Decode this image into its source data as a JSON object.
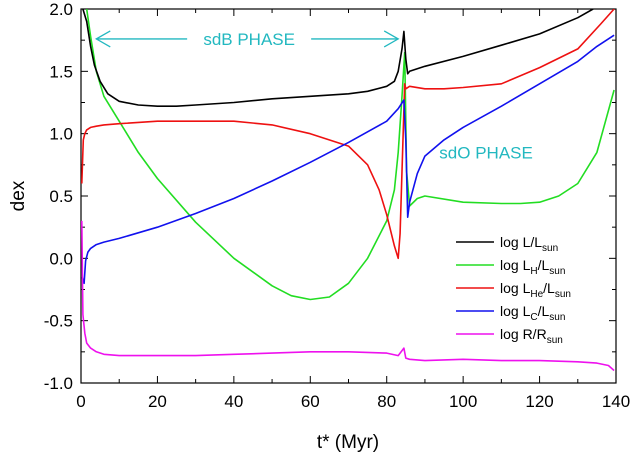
{
  "chart_data": {
    "type": "line",
    "xlabel": "t* (Myr)",
    "ylabel": "dex",
    "xlim": [
      0,
      140
    ],
    "ylim": [
      -1.0,
      2.0
    ],
    "xticks": [
      0,
      20,
      40,
      60,
      80,
      100,
      120,
      140
    ],
    "yticks": [
      -1.0,
      -0.5,
      0.0,
      0.5,
      1.0,
      1.5,
      2.0
    ],
    "xtick_labels": [
      "0",
      "20",
      "40",
      "60",
      "80",
      "100",
      "120",
      "140"
    ],
    "ytick_labels": [
      "-1.0",
      "-0.5",
      "0.0",
      "0.5",
      "1.0",
      "1.5",
      "2.0"
    ],
    "grid": false,
    "legend_position": "lower-right",
    "annotations": [
      {
        "text": "sdB PHASE",
        "x": 44,
        "y": 1.76,
        "arrow_from": 4,
        "arrow_to": 83
      },
      {
        "text": "sdO PHASE",
        "x": 106,
        "y": 0.85
      }
    ],
    "series": [
      {
        "name": "log L/L",
        "name_sub": "sun",
        "color": "#000000",
        "x": [
          0.5,
          1.5,
          2.5,
          3.5,
          5,
          7,
          10,
          15,
          20,
          25,
          30,
          40,
          50,
          60,
          70,
          75,
          80,
          82,
          83,
          84,
          84.5,
          85,
          85.5,
          86,
          90,
          100,
          110,
          120,
          130,
          134
        ],
        "y": [
          2.0,
          1.9,
          1.7,
          1.55,
          1.42,
          1.32,
          1.26,
          1.23,
          1.22,
          1.22,
          1.23,
          1.25,
          1.28,
          1.3,
          1.32,
          1.34,
          1.38,
          1.42,
          1.5,
          1.68,
          1.82,
          1.6,
          1.48,
          1.5,
          1.54,
          1.62,
          1.71,
          1.8,
          1.93,
          2.0
        ]
      },
      {
        "name": "log L",
        "name_sub": "H",
        "name_rest": "/L",
        "name_rest_sub": "sun",
        "color": "#22dd22",
        "x": [
          1.5,
          2.5,
          4,
          6,
          10,
          15,
          20,
          30,
          40,
          50,
          55,
          60,
          65,
          70,
          75,
          80,
          82,
          83,
          84,
          84.7,
          85.2,
          86,
          88,
          90,
          100,
          110,
          115,
          120,
          125,
          130,
          135,
          139.5
        ],
        "y": [
          2.0,
          1.78,
          1.5,
          1.3,
          1.1,
          0.85,
          0.64,
          0.29,
          0.0,
          -0.22,
          -0.3,
          -0.33,
          -0.31,
          -0.2,
          0.0,
          0.3,
          0.55,
          0.85,
          1.3,
          1.65,
          0.7,
          0.42,
          0.48,
          0.5,
          0.45,
          0.44,
          0.44,
          0.45,
          0.5,
          0.6,
          0.85,
          1.35
        ]
      },
      {
        "name": "log L",
        "name_sub": "He",
        "name_rest": "/L",
        "name_rest_sub": "sun",
        "color": "#ee1111",
        "x": [
          0.2,
          0.6,
          1.0,
          1.5,
          2.5,
          4,
          6,
          10,
          20,
          30,
          40,
          50,
          60,
          70,
          75,
          78,
          80,
          82,
          83,
          83.5,
          84,
          84.7,
          85,
          86,
          90,
          95,
          100,
          110,
          120,
          130,
          136,
          139.5
        ],
        "y": [
          0.6,
          0.95,
          1.0,
          1.03,
          1.05,
          1.06,
          1.07,
          1.08,
          1.1,
          1.1,
          1.1,
          1.07,
          1.0,
          0.9,
          0.75,
          0.55,
          0.35,
          0.1,
          0.0,
          0.2,
          0.7,
          1.4,
          1.36,
          1.38,
          1.36,
          1.36,
          1.37,
          1.4,
          1.53,
          1.68,
          1.88,
          2.0
        ]
      },
      {
        "name": "log L",
        "name_sub": "C",
        "name_rest": "/L",
        "name_rest_sub": "sun",
        "color": "#1111ee",
        "x": [
          0.3,
          0.8,
          1.2,
          1.8,
          2.5,
          4,
          6,
          10,
          20,
          30,
          40,
          50,
          60,
          70,
          80,
          83,
          84.5,
          85,
          85.5,
          86,
          88,
          90,
          95,
          100,
          110,
          120,
          130,
          135,
          139.5
        ],
        "y": [
          -0.15,
          -0.2,
          -0.02,
          0.05,
          0.08,
          0.11,
          0.13,
          0.16,
          0.25,
          0.36,
          0.48,
          0.62,
          0.77,
          0.93,
          1.1,
          1.2,
          1.27,
          0.95,
          0.33,
          0.45,
          0.68,
          0.82,
          0.95,
          1.05,
          1.22,
          1.4,
          1.58,
          1.7,
          1.79
        ]
      },
      {
        "name": "log R/R",
        "name_sub": "sun",
        "color": "#ee11ee",
        "x": [
          0.2,
          0.5,
          1.0,
          1.5,
          2.5,
          4,
          6,
          10,
          20,
          30,
          40,
          50,
          60,
          70,
          80,
          83,
          84,
          84.5,
          85,
          86,
          90,
          100,
          110,
          120,
          130,
          135,
          138,
          139.5
        ],
        "y": [
          0.3,
          -0.45,
          -0.6,
          -0.68,
          -0.72,
          -0.75,
          -0.77,
          -0.78,
          -0.78,
          -0.78,
          -0.77,
          -0.76,
          -0.75,
          -0.75,
          -0.76,
          -0.78,
          -0.74,
          -0.72,
          -0.8,
          -0.81,
          -0.82,
          -0.81,
          -0.82,
          -0.82,
          -0.83,
          -0.84,
          -0.86,
          -0.9
        ]
      }
    ]
  }
}
